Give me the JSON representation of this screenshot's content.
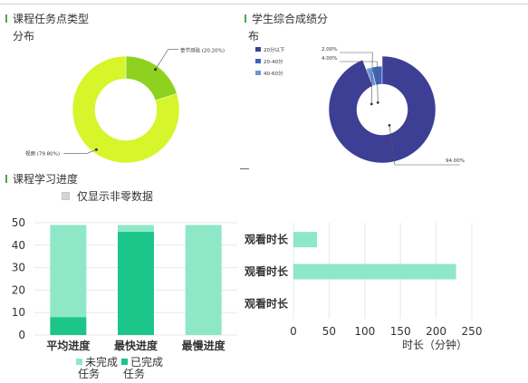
{
  "task_type": {
    "title_line1": "课程任务点类型",
    "title_line2": "分布",
    "chart_data": {
      "type": "pie",
      "hole": true,
      "labels": [
        "章节测验",
        "视频"
      ],
      "values": [
        20.2,
        79.8
      ],
      "data_labels": [
        "章节测验 (20.20%)",
        "视频 (79.80%)"
      ],
      "colors": [
        "#8fd11f",
        "#d6f52a"
      ]
    }
  },
  "score_dist": {
    "title_line1": "学生综合成绩分",
    "title_line2": "布",
    "chart_data": {
      "type": "pie",
      "hole": true,
      "labels": [
        "20分以下",
        "20-40分",
        "40-60分"
      ],
      "values": [
        94.0,
        4.0,
        2.0
      ],
      "data_labels": [
        "94.00%",
        "4.00%",
        "2.00%"
      ],
      "legend_position": "top-left",
      "colors": [
        "#3c3f94",
        "#3f63b8",
        "#6d95d9"
      ]
    }
  },
  "progress": {
    "title": "课程学习进度",
    "filter_label": "仅显示非零数据",
    "chart_data": {
      "type": "bar",
      "stacked": true,
      "categories": [
        "平均进度",
        "最快进度",
        "最慢进度"
      ],
      "series": [
        {
          "name": "已完成任务",
          "values": [
            8,
            46,
            0
          ]
        },
        {
          "name": "未完成任务",
          "values": [
            41,
            3,
            49
          ]
        }
      ],
      "ylim": [
        0,
        50
      ],
      "yticks": [
        0,
        10,
        20,
        30,
        40,
        50
      ],
      "ytick_labels": [
        "0",
        "10",
        "20",
        "30",
        "40",
        "50"
      ],
      "legend": [
        {
          "line1": "未完成",
          "line2": "任务"
        },
        {
          "line1": "已完成",
          "line2": "任务"
        }
      ],
      "legend_position": "bottom",
      "colors": [
        "#1cc68a",
        "#8ee8c8"
      ]
    }
  },
  "watch_time": {
    "chart_data": {
      "type": "bar",
      "orientation": "horizontal",
      "categories": [
        "观看时长",
        "观看时长",
        "观看时长"
      ],
      "values": [
        33,
        228,
        0
      ],
      "xlabel": "时长（分钟）",
      "xlim": [
        0,
        250
      ],
      "xticks": [
        0,
        50,
        100,
        150,
        200,
        250
      ],
      "xtick_labels": [
        "0",
        "50",
        "100",
        "150",
        "200",
        "250"
      ],
      "colors": [
        "#8ee8c8"
      ]
    }
  }
}
